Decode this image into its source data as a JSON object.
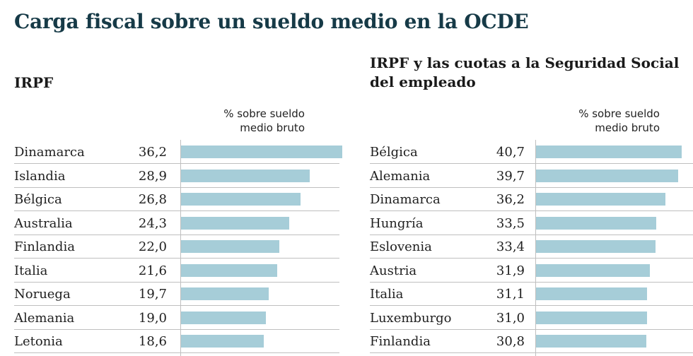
{
  "title": "Carga fiscal sobre un sueldo medio en la OCDE",
  "unit_line1": "% sobre sueldo",
  "unit_line2": "medio bruto",
  "colors": {
    "bar": "#a6cdd8",
    "title": "#163a47"
  },
  "chart_data": [
    {
      "type": "bar",
      "title": "IRPF",
      "orientation": "horizontal",
      "unit": "% sobre sueldo medio bruto",
      "categories": [
        "Dinamarca",
        "Islandia",
        "Bélgica",
        "Australia",
        "Finlandia",
        "Italia",
        "Noruega",
        "Alemania",
        "Letonia"
      ],
      "values": [
        36.2,
        28.9,
        26.8,
        24.3,
        22.0,
        21.6,
        19.7,
        19.0,
        18.6
      ],
      "value_labels": [
        "36,2",
        "28,9",
        "26,8",
        "24,3",
        "22,0",
        "21,6",
        "19,7",
        "19,0",
        "18,6"
      ],
      "xlim": [
        0,
        36.2
      ]
    },
    {
      "type": "bar",
      "title": "IRPF y las cuotas a la Seguridad Social del empleado",
      "orientation": "horizontal",
      "unit": "% sobre sueldo medio bruto",
      "categories": [
        "Bélgica",
        "Alemania",
        "Dinamarca",
        "Hungría",
        "Eslovenia",
        "Austria",
        "Italia",
        "Luxemburgo",
        "Finlandia"
      ],
      "values": [
        40.7,
        39.7,
        36.2,
        33.5,
        33.4,
        31.9,
        31.1,
        31.0,
        30.8
      ],
      "value_labels": [
        "40,7",
        "39,7",
        "36,2",
        "33,5",
        "33,4",
        "31,9",
        "31,1",
        "31,0",
        "30,8"
      ],
      "xlim": [
        0,
        40.7
      ]
    }
  ]
}
